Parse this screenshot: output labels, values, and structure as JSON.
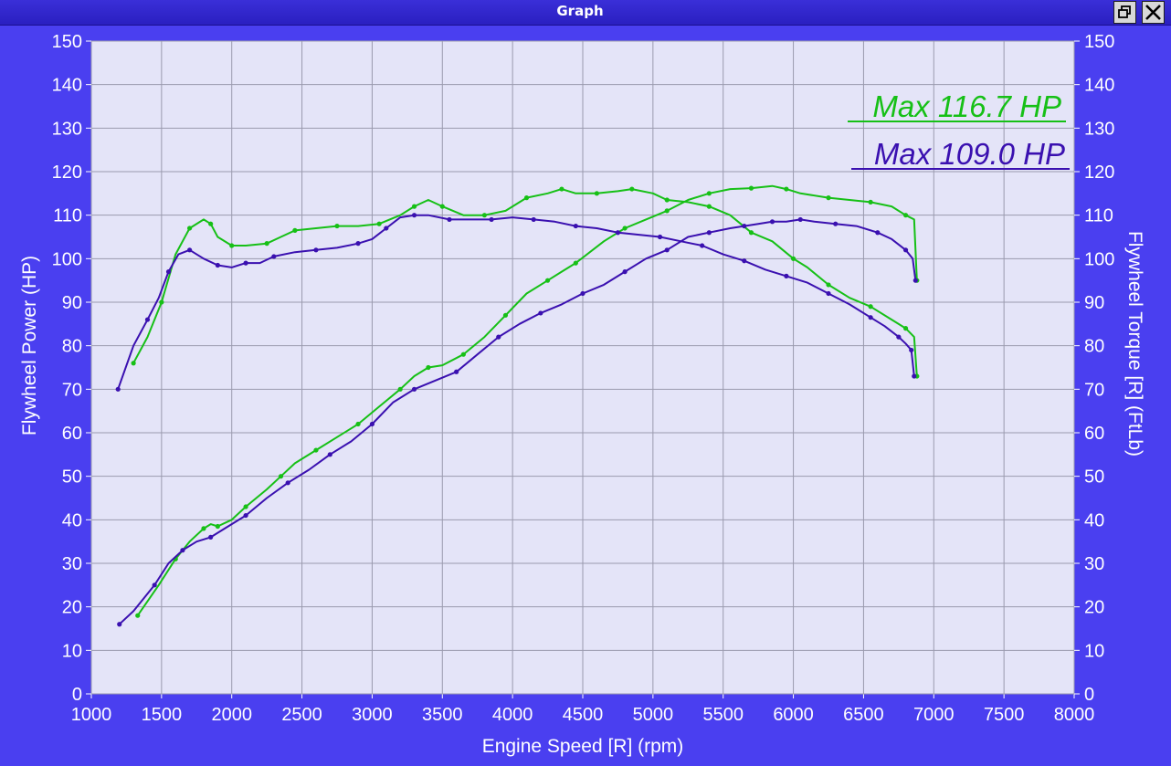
{
  "window": {
    "title": "Graph",
    "restore_icon": "restore-icon",
    "close_icon": "close-icon"
  },
  "chart_data": {
    "type": "line",
    "xlabel": "Engine Speed [R] (rpm)",
    "ylabel_left": "Flywheel Power (HP)",
    "ylabel_right": "Flywheel Torque [R] (FtLb)",
    "xlim": [
      1000,
      8000
    ],
    "ylim": [
      0,
      150
    ],
    "x_ticks": [
      1000,
      1500,
      2000,
      2500,
      3000,
      3500,
      4000,
      4500,
      5000,
      5500,
      6000,
      6500,
      7000,
      7500,
      8000
    ],
    "y_ticks": [
      0,
      10,
      20,
      30,
      40,
      50,
      60,
      70,
      80,
      90,
      100,
      110,
      120,
      130,
      140,
      150
    ],
    "grid": true,
    "background": "#e4e4f8",
    "annotations": [
      {
        "text": "Max 116.7 HP",
        "color": "#16c016"
      },
      {
        "text": "Max 109.0 HP",
        "color": "#3a10b0"
      }
    ],
    "series": [
      {
        "color": "#16c016",
        "kind": "power",
        "x": [
          1330,
          1480,
          1600,
          1700,
          1800,
          1850,
          1900,
          2000,
          2100,
          2250,
          2350,
          2450,
          2600,
          2750,
          2900,
          3050,
          3200,
          3300,
          3400,
          3500,
          3650,
          3800,
          3950,
          4100,
          4250,
          4350,
          4450,
          4650,
          4800,
          4950,
          5100,
          5250,
          5400,
          5550,
          5700,
          5850,
          5950,
          6050,
          6250,
          6400,
          6550,
          6700,
          6800,
          6860,
          6880
        ],
        "y": [
          18,
          25,
          31,
          35,
          38,
          39,
          38.5,
          40,
          43,
          47,
          50,
          53,
          56,
          59,
          62,
          66,
          70,
          73,
          75,
          75.5,
          78,
          82,
          87,
          92,
          95,
          97,
          99,
          104,
          107,
          109,
          111,
          113.5,
          115,
          116,
          116.2,
          116.7,
          116,
          115,
          114,
          113.5,
          113,
          112,
          110,
          109,
          95
        ]
      },
      {
        "color": "#16c016",
        "kind": "torque",
        "x": [
          1300,
          1400,
          1500,
          1600,
          1700,
          1800,
          1850,
          1900,
          2000,
          2100,
          2250,
          2350,
          2450,
          2600,
          2750,
          2900,
          3050,
          3200,
          3300,
          3400,
          3500,
          3650,
          3800,
          3950,
          4100,
          4250,
          4350,
          4450,
          4600,
          4750,
          4850,
          5000,
          5100,
          5250,
          5400,
          5550,
          5700,
          5850,
          6000,
          6100,
          6250,
          6400,
          6550,
          6700,
          6800,
          6860,
          6880
        ],
        "y": [
          76,
          82,
          90,
          101,
          107,
          109,
          108,
          105,
          103,
          103,
          103.5,
          105,
          106.5,
          107,
          107.5,
          107.5,
          108,
          110,
          112,
          113.5,
          112,
          110,
          110,
          111,
          114,
          115,
          116,
          115,
          115,
          115.5,
          116,
          115,
          113.5,
          113,
          112,
          110,
          106,
          104,
          100,
          98,
          94,
          91,
          89,
          86,
          84,
          82,
          73
        ]
      },
      {
        "color": "#3a10b0",
        "kind": "power",
        "x": [
          1200,
          1300,
          1450,
          1550,
          1650,
          1750,
          1850,
          1950,
          2100,
          2250,
          2400,
          2550,
          2700,
          2850,
          3000,
          3150,
          3300,
          3450,
          3600,
          3750,
          3900,
          4050,
          4200,
          4350,
          4500,
          4650,
          4800,
          4950,
          5100,
          5250,
          5400,
          5550,
          5650,
          5750,
          5850,
          5950,
          6050,
          6150,
          6300,
          6450,
          6600,
          6700,
          6800,
          6850,
          6870
        ],
        "y": [
          16,
          19,
          25,
          30,
          33,
          35,
          36,
          38,
          41,
          45,
          48.5,
          51.5,
          55,
          58,
          62,
          67,
          70,
          72,
          74,
          78,
          82,
          85,
          87.5,
          89.5,
          92,
          94,
          97,
          100,
          102,
          105,
          106,
          107,
          107.5,
          108,
          108.5,
          108.5,
          109,
          108.5,
          108,
          107.5,
          106,
          104.5,
          102,
          100,
          95
        ]
      },
      {
        "color": "#3a10b0",
        "kind": "torque",
        "x": [
          1190,
          1300,
          1400,
          1480,
          1550,
          1620,
          1700,
          1800,
          1900,
          2000,
          2100,
          2200,
          2300,
          2450,
          2600,
          2750,
          2900,
          3000,
          3100,
          3200,
          3300,
          3400,
          3550,
          3700,
          3850,
          4000,
          4150,
          4300,
          4450,
          4600,
          4750,
          4900,
          5050,
          5200,
          5350,
          5500,
          5650,
          5800,
          5950,
          6100,
          6250,
          6400,
          6550,
          6650,
          6750,
          6800,
          6840,
          6860
        ],
        "y": [
          70,
          80,
          86,
          91,
          97,
          101,
          102,
          100,
          98.5,
          98,
          99,
          99,
          100.5,
          101.5,
          102,
          102.5,
          103.5,
          104.5,
          107,
          109.5,
          110,
          110,
          109,
          109,
          109,
          109.5,
          109,
          108.5,
          107.5,
          107,
          106,
          105.5,
          105,
          104,
          103,
          101,
          99.5,
          97.5,
          96,
          94.5,
          92,
          89.5,
          86.5,
          84.5,
          82,
          80.5,
          79,
          73
        ]
      }
    ]
  }
}
